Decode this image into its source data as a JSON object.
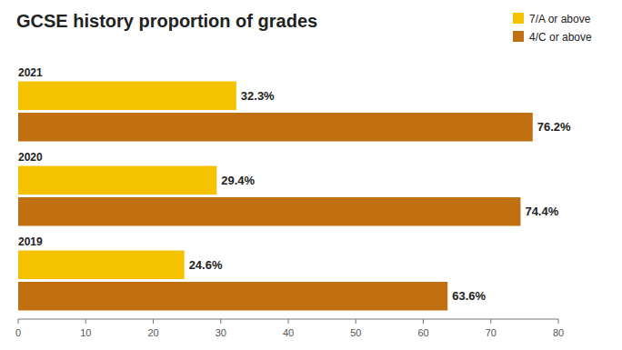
{
  "chart_data": {
    "type": "bar",
    "orientation": "horizontal",
    "title": "GCSE history proportion of grades",
    "categories": [
      "2021",
      "2020",
      "2019"
    ],
    "series": [
      {
        "name": "7/A or above",
        "color": "#f5c200",
        "values": [
          32.3,
          29.4,
          24.6
        ],
        "value_labels": [
          "32.3%",
          "29.4%",
          "24.6%"
        ]
      },
      {
        "name": "4/C or above",
        "color": "#c07010",
        "values": [
          76.2,
          74.4,
          63.6
        ],
        "value_labels": [
          "76.2%",
          "74.4%",
          "63.6%"
        ]
      }
    ],
    "xlim": [
      0,
      80
    ],
    "xticks": [
      0,
      10,
      20,
      30,
      40,
      50,
      60,
      70,
      80
    ],
    "data_labels": true,
    "grid": false,
    "legend": "upper right"
  }
}
